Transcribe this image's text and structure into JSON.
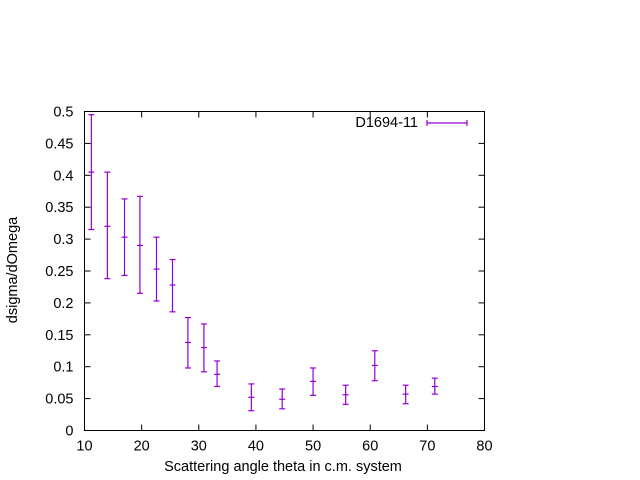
{
  "chart_data": {
    "type": "scatter",
    "xlabel": "Scattering angle theta in c.m. system",
    "ylabel": "dsigma/dOmega",
    "xlim": [
      10,
      80
    ],
    "ylim": [
      0,
      0.5
    ],
    "xticks": [
      10,
      20,
      30,
      40,
      50,
      60,
      70,
      80
    ],
    "xtick_labels": [
      "10",
      "20",
      "30",
      "40",
      "50",
      "60",
      "70",
      "80"
    ],
    "yticks": [
      0,
      0.05,
      0.1,
      0.15,
      0.2,
      0.25,
      0.3,
      0.35,
      0.4,
      0.45,
      0.5
    ],
    "ytick_labels": [
      "0",
      "0.05",
      "0.1",
      "0.15",
      "0.2",
      "0.25",
      "0.3",
      "0.35",
      "0.4",
      "0.45",
      "0.5"
    ],
    "grid": false,
    "legend_position": "top-right",
    "series": [
      {
        "name": "D1694-11",
        "color": "#9400d3",
        "style": "errorbars",
        "points": [
          {
            "x": 11.2,
            "y": 0.405,
            "ylow": 0.315,
            "yhigh": 0.495
          },
          {
            "x": 14.0,
            "y": 0.32,
            "ylow": 0.238,
            "yhigh": 0.405
          },
          {
            "x": 17.0,
            "y": 0.303,
            "ylow": 0.243,
            "yhigh": 0.363
          },
          {
            "x": 19.7,
            "y": 0.29,
            "ylow": 0.215,
            "yhigh": 0.367
          },
          {
            "x": 22.6,
            "y": 0.253,
            "ylow": 0.203,
            "yhigh": 0.303
          },
          {
            "x": 25.4,
            "y": 0.228,
            "ylow": 0.186,
            "yhigh": 0.268
          },
          {
            "x": 28.1,
            "y": 0.138,
            "ylow": 0.098,
            "yhigh": 0.177
          },
          {
            "x": 30.9,
            "y": 0.13,
            "ylow": 0.092,
            "yhigh": 0.167
          },
          {
            "x": 33.2,
            "y": 0.088,
            "ylow": 0.069,
            "yhigh": 0.109
          },
          {
            "x": 39.2,
            "y": 0.052,
            "ylow": 0.031,
            "yhigh": 0.073
          },
          {
            "x": 44.6,
            "y": 0.049,
            "ylow": 0.034,
            "yhigh": 0.065
          },
          {
            "x": 50.0,
            "y": 0.077,
            "ylow": 0.055,
            "yhigh": 0.098
          },
          {
            "x": 55.7,
            "y": 0.056,
            "ylow": 0.041,
            "yhigh": 0.071
          },
          {
            "x": 60.8,
            "y": 0.102,
            "ylow": 0.078,
            "yhigh": 0.125
          },
          {
            "x": 66.2,
            "y": 0.057,
            "ylow": 0.042,
            "yhigh": 0.071
          },
          {
            "x": 71.3,
            "y": 0.069,
            "ylow": 0.057,
            "yhigh": 0.082
          }
        ]
      }
    ]
  }
}
